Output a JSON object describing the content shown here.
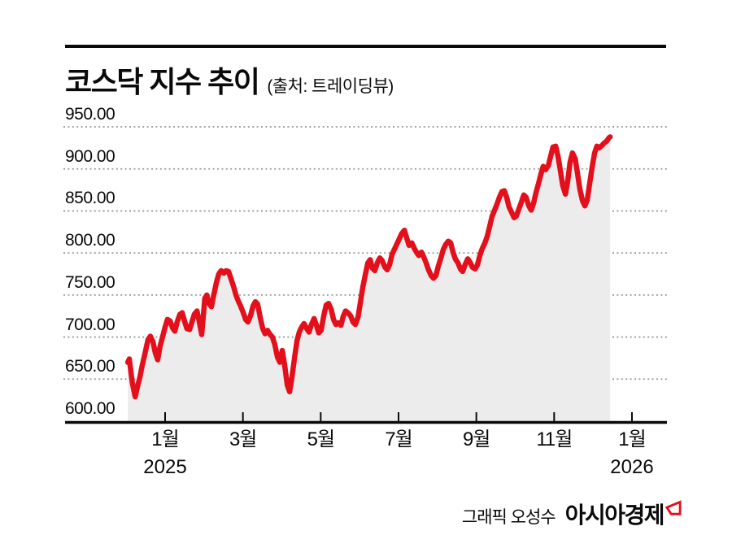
{
  "header": {
    "title": "코스닥 지수 추이",
    "source": "(출처: 트레이딩뷰)"
  },
  "footer": {
    "credit": "그래픽 오성수",
    "brand": "아시아경제"
  },
  "colors": {
    "line": "#e3101c",
    "area_fill": "#ececec",
    "grid": "#999999",
    "axis": "#0a0a0a",
    "brand_red": "#e3101c"
  },
  "chart_data": {
    "type": "area",
    "title": "코스닥 지수 추이",
    "source": "트레이딩뷰",
    "xlabel": "",
    "ylabel": "",
    "ylim": [
      600,
      950
    ],
    "grid": "horizontal-dotted",
    "legend_position": "none",
    "x_unit": "months since 2025-01 (tick spacing = 2 months)",
    "ytick_labels": [
      "950.00",
      "900.00",
      "850.00",
      "800.00",
      "750.00",
      "700.00",
      "650.00",
      "600.00"
    ],
    "ytick_values": [
      950,
      900,
      850,
      800,
      750,
      700,
      650,
      600
    ],
    "xticks": [
      {
        "month": 0,
        "label": "1월",
        "year": "2025"
      },
      {
        "month": 2,
        "label": "3월"
      },
      {
        "month": 4,
        "label": "5월"
      },
      {
        "month": 6,
        "label": "7월"
      },
      {
        "month": 8,
        "label": "9월"
      },
      {
        "month": 10,
        "label": "11월"
      },
      {
        "month": 12,
        "label": "1월",
        "year": "2026"
      }
    ],
    "series": [
      {
        "name": "코스닥 지수",
        "color": "#e3101c",
        "points": [
          [
            -0.96,
            670
          ],
          [
            -0.92,
            674
          ],
          [
            -0.88,
            659
          ],
          [
            -0.84,
            645
          ],
          [
            -0.77,
            629
          ],
          [
            -0.71,
            641
          ],
          [
            -0.65,
            652
          ],
          [
            -0.59,
            666
          ],
          [
            -0.52,
            680
          ],
          [
            -0.44,
            697
          ],
          [
            -0.38,
            701
          ],
          [
            -0.31,
            694
          ],
          [
            -0.25,
            681
          ],
          [
            -0.19,
            673
          ],
          [
            -0.13,
            689
          ],
          [
            -0.06,
            701
          ],
          [
            0,
            712
          ],
          [
            0.06,
            721
          ],
          [
            0.13,
            719
          ],
          [
            0.19,
            711
          ],
          [
            0.25,
            707
          ],
          [
            0.31,
            718
          ],
          [
            0.38,
            727
          ],
          [
            0.44,
            729
          ],
          [
            0.5,
            719
          ],
          [
            0.56,
            710
          ],
          [
            0.63,
            709
          ],
          [
            0.69,
            718
          ],
          [
            0.75,
            727
          ],
          [
            0.82,
            731
          ],
          [
            0.88,
            718
          ],
          [
            0.94,
            703
          ],
          [
            0.98,
            724
          ],
          [
            1.02,
            746
          ],
          [
            1.07,
            750
          ],
          [
            1.13,
            740
          ],
          [
            1.19,
            736
          ],
          [
            1.25,
            750
          ],
          [
            1.32,
            765
          ],
          [
            1.38,
            775
          ],
          [
            1.44,
            779
          ],
          [
            1.51,
            776
          ],
          [
            1.57,
            779
          ],
          [
            1.63,
            778
          ],
          [
            1.69,
            770
          ],
          [
            1.76,
            760
          ],
          [
            1.82,
            750
          ],
          [
            1.88,
            743
          ],
          [
            1.94,
            737
          ],
          [
            2.01,
            729
          ],
          [
            2.07,
            721
          ],
          [
            2.13,
            718
          ],
          [
            2.2,
            726
          ],
          [
            2.26,
            737
          ],
          [
            2.32,
            742
          ],
          [
            2.38,
            739
          ],
          [
            2.45,
            722
          ],
          [
            2.51,
            710
          ],
          [
            2.57,
            704
          ],
          [
            2.63,
            708
          ],
          [
            2.7,
            703
          ],
          [
            2.76,
            700
          ],
          [
            2.82,
            691
          ],
          [
            2.89,
            676
          ],
          [
            2.95,
            670
          ],
          [
            3.01,
            684
          ],
          [
            3.07,
            668
          ],
          [
            3.14,
            643
          ],
          [
            3.2,
            635
          ],
          [
            3.26,
            652
          ],
          [
            3.32,
            673
          ],
          [
            3.39,
            696
          ],
          [
            3.45,
            706
          ],
          [
            3.51,
            712
          ],
          [
            3.57,
            716
          ],
          [
            3.64,
            710
          ],
          [
            3.7,
            706
          ],
          [
            3.76,
            715
          ],
          [
            3.83,
            722
          ],
          [
            3.89,
            714
          ],
          [
            3.95,
            705
          ],
          [
            4.01,
            708
          ],
          [
            4.08,
            726
          ],
          [
            4.14,
            738
          ],
          [
            4.2,
            740
          ],
          [
            4.27,
            733
          ],
          [
            4.33,
            721
          ],
          [
            4.39,
            715
          ],
          [
            4.45,
            717
          ],
          [
            4.52,
            714
          ],
          [
            4.58,
            725
          ],
          [
            4.64,
            731
          ],
          [
            4.7,
            729
          ],
          [
            4.77,
            725
          ],
          [
            4.83,
            718
          ],
          [
            4.89,
            715
          ],
          [
            4.96,
            724
          ],
          [
            5.02,
            741
          ],
          [
            5.08,
            759
          ],
          [
            5.14,
            773
          ],
          [
            5.21,
            788
          ],
          [
            5.27,
            792
          ],
          [
            5.33,
            782
          ],
          [
            5.39,
            779
          ],
          [
            5.46,
            789
          ],
          [
            5.52,
            794
          ],
          [
            5.58,
            791
          ],
          [
            5.65,
            783
          ],
          [
            5.71,
            780
          ],
          [
            5.77,
            786
          ],
          [
            5.83,
            798
          ],
          [
            5.9,
            805
          ],
          [
            5.96,
            811
          ],
          [
            6.02,
            817
          ],
          [
            6.08,
            823
          ],
          [
            6.15,
            827
          ],
          [
            6.21,
            818
          ],
          [
            6.27,
            809
          ],
          [
            6.34,
            812
          ],
          [
            6.4,
            806
          ],
          [
            6.46,
            801
          ],
          [
            6.52,
            797
          ],
          [
            6.59,
            801
          ],
          [
            6.65,
            795
          ],
          [
            6.71,
            788
          ],
          [
            6.77,
            780
          ],
          [
            6.84,
            773
          ],
          [
            6.9,
            770
          ],
          [
            6.96,
            773
          ],
          [
            7.02,
            784
          ],
          [
            7.09,
            794
          ],
          [
            7.15,
            804
          ],
          [
            7.21,
            810
          ],
          [
            7.28,
            814
          ],
          [
            7.34,
            812
          ],
          [
            7.4,
            801
          ],
          [
            7.46,
            793
          ],
          [
            7.53,
            788
          ],
          [
            7.59,
            781
          ],
          [
            7.65,
            778
          ],
          [
            7.71,
            786
          ],
          [
            7.78,
            793
          ],
          [
            7.84,
            789
          ],
          [
            7.9,
            783
          ],
          [
            7.97,
            781
          ],
          [
            8.03,
            786
          ],
          [
            8.09,
            797
          ],
          [
            8.15,
            805
          ],
          [
            8.22,
            812
          ],
          [
            8.28,
            820
          ],
          [
            8.34,
            831
          ],
          [
            8.4,
            843
          ],
          [
            8.47,
            851
          ],
          [
            8.53,
            858
          ],
          [
            8.59,
            866
          ],
          [
            8.66,
            873
          ],
          [
            8.72,
            874
          ],
          [
            8.78,
            866
          ],
          [
            8.84,
            855
          ],
          [
            8.91,
            848
          ],
          [
            8.97,
            842
          ],
          [
            9.03,
            844
          ],
          [
            9.09,
            852
          ],
          [
            9.16,
            861
          ],
          [
            9.22,
            869
          ],
          [
            9.28,
            866
          ],
          [
            9.35,
            856
          ],
          [
            9.41,
            851
          ],
          [
            9.47,
            859
          ],
          [
            9.53,
            871
          ],
          [
            9.6,
            883
          ],
          [
            9.66,
            894
          ],
          [
            9.72,
            903
          ],
          [
            9.78,
            899
          ],
          [
            9.85,
            904
          ],
          [
            9.91,
            915
          ],
          [
            9.97,
            926
          ],
          [
            10.04,
            927
          ],
          [
            10.1,
            915
          ],
          [
            10.16,
            898
          ],
          [
            10.22,
            880
          ],
          [
            10.29,
            870
          ],
          [
            10.35,
            886
          ],
          [
            10.41,
            908
          ],
          [
            10.47,
            919
          ],
          [
            10.54,
            912
          ],
          [
            10.6,
            895
          ],
          [
            10.66,
            876
          ],
          [
            10.73,
            862
          ],
          [
            10.79,
            856
          ],
          [
            10.85,
            863
          ],
          [
            10.91,
            882
          ],
          [
            10.98,
            903
          ],
          [
            11.04,
            919
          ],
          [
            11.1,
            927
          ],
          [
            11.16,
            925
          ],
          [
            11.23,
            928
          ],
          [
            11.29,
            931
          ],
          [
            11.35,
            933
          ],
          [
            11.41,
            937
          ],
          [
            11.44,
            938
          ]
        ]
      }
    ]
  }
}
